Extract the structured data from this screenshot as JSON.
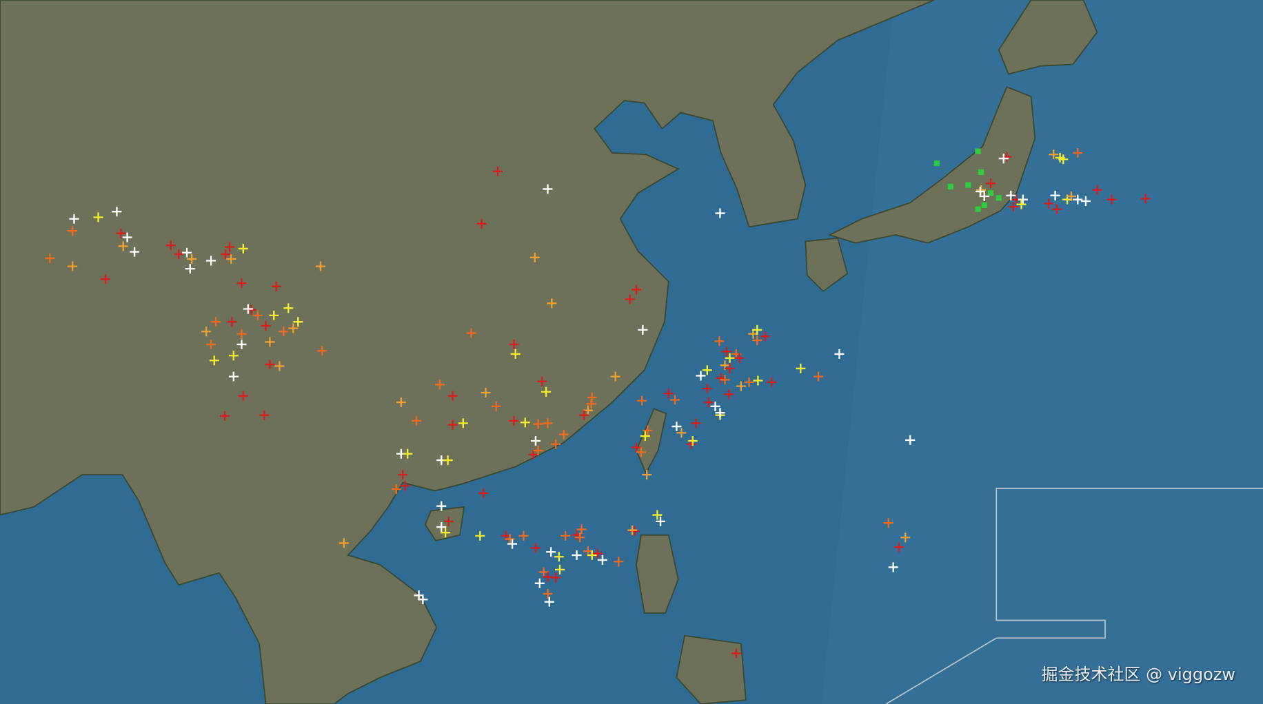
{
  "map": {
    "colors": {
      "land": "#6e7159",
      "ocean": "#2f6b93",
      "ocean_far": "#336f97",
      "coast": "#39472f",
      "strike_white": "#ffffff",
      "strike_yellow": "#f4ee2a",
      "strike_amber": "#f0a030",
      "strike_orange": "#f26a1e",
      "strike_red": "#d81c1c",
      "station_green": "#2ecc40"
    }
  },
  "watermark": "掘金技术社区 @ viggozw"
}
